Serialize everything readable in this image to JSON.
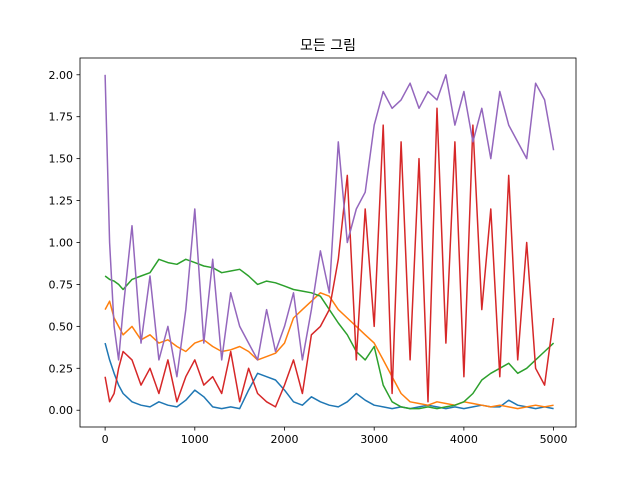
{
  "chart_data": {
    "type": "line",
    "title": "모든 그림",
    "xlabel": "",
    "ylabel": "",
    "xlim": [
      -280,
      5250
    ],
    "ylim": [
      -0.1,
      2.1
    ],
    "grid": false,
    "legend": "none",
    "xticks": [
      0,
      1000,
      2000,
      3000,
      4000,
      5000
    ],
    "xtick_labels": [
      "0",
      "1000",
      "2000",
      "3000",
      "4000",
      "5000"
    ],
    "yticks": [
      0.0,
      0.25,
      0.5,
      0.75,
      1.0,
      1.25,
      1.5,
      1.75,
      2.0
    ],
    "ytick_labels": [
      "0.00",
      "0.25",
      "0.50",
      "0.75",
      "1.00",
      "1.25",
      "1.50",
      "1.75",
      "2.00"
    ],
    "series": [
      {
        "color": "#1f77b4",
        "x": [
          0,
          50,
          100,
          150,
          200,
          300,
          400,
          500,
          600,
          700,
          800,
          900,
          1000,
          1100,
          1200,
          1300,
          1400,
          1500,
          1600,
          1700,
          1800,
          1900,
          2000,
          2100,
          2200,
          2300,
          2400,
          2500,
          2600,
          2700,
          2800,
          2900,
          3000,
          3100,
          3200,
          3300,
          3400,
          3500,
          3600,
          3700,
          3800,
          3900,
          4000,
          4100,
          4200,
          4300,
          4400,
          4500,
          4600,
          4700,
          4800,
          4900,
          5000
        ],
        "y": [
          0.4,
          0.3,
          0.22,
          0.15,
          0.1,
          0.05,
          0.03,
          0.02,
          0.05,
          0.03,
          0.02,
          0.06,
          0.12,
          0.08,
          0.02,
          0.01,
          0.02,
          0.01,
          0.12,
          0.22,
          0.2,
          0.18,
          0.12,
          0.05,
          0.03,
          0.08,
          0.05,
          0.03,
          0.02,
          0.05,
          0.1,
          0.06,
          0.03,
          0.02,
          0.01,
          0.02,
          0.01,
          0.02,
          0.03,
          0.02,
          0.01,
          0.02,
          0.01,
          0.02,
          0.03,
          0.02,
          0.02,
          0.06,
          0.03,
          0.02,
          0.01,
          0.02,
          0.01
        ]
      },
      {
        "color": "#ff7f0e",
        "x": [
          0,
          50,
          100,
          150,
          200,
          300,
          400,
          500,
          600,
          700,
          800,
          900,
          1000,
          1100,
          1200,
          1300,
          1400,
          1500,
          1600,
          1700,
          1800,
          1900,
          2000,
          2100,
          2200,
          2300,
          2400,
          2500,
          2600,
          2700,
          2800,
          2900,
          3000,
          3100,
          3200,
          3300,
          3400,
          3500,
          3600,
          3700,
          3800,
          3900,
          4000,
          4100,
          4200,
          4300,
          4400,
          4500,
          4600,
          4700,
          4800,
          4900,
          5000
        ],
        "y": [
          0.6,
          0.65,
          0.55,
          0.5,
          0.45,
          0.5,
          0.42,
          0.45,
          0.4,
          0.42,
          0.38,
          0.35,
          0.4,
          0.42,
          0.38,
          0.35,
          0.36,
          0.38,
          0.35,
          0.3,
          0.32,
          0.34,
          0.4,
          0.55,
          0.6,
          0.65,
          0.7,
          0.68,
          0.6,
          0.55,
          0.5,
          0.45,
          0.4,
          0.3,
          0.2,
          0.1,
          0.05,
          0.04,
          0.03,
          0.05,
          0.04,
          0.03,
          0.05,
          0.04,
          0.03,
          0.02,
          0.03,
          0.02,
          0.01,
          0.02,
          0.03,
          0.02,
          0.03
        ]
      },
      {
        "color": "#2ca02c",
        "x": [
          0,
          50,
          100,
          150,
          200,
          300,
          400,
          500,
          600,
          700,
          800,
          900,
          1000,
          1100,
          1200,
          1300,
          1400,
          1500,
          1600,
          1700,
          1800,
          1900,
          2000,
          2100,
          2200,
          2300,
          2400,
          2500,
          2600,
          2700,
          2800,
          2900,
          3000,
          3100,
          3200,
          3300,
          3400,
          3500,
          3600,
          3700,
          3800,
          3900,
          4000,
          4100,
          4200,
          4300,
          4400,
          4500,
          4600,
          4700,
          4800,
          4900,
          5000
        ],
        "y": [
          0.8,
          0.78,
          0.77,
          0.75,
          0.72,
          0.78,
          0.8,
          0.82,
          0.9,
          0.88,
          0.87,
          0.9,
          0.88,
          0.86,
          0.85,
          0.82,
          0.83,
          0.84,
          0.8,
          0.75,
          0.77,
          0.76,
          0.74,
          0.72,
          0.71,
          0.7,
          0.68,
          0.6,
          0.52,
          0.45,
          0.35,
          0.3,
          0.38,
          0.15,
          0.05,
          0.02,
          0.01,
          0.01,
          0.02,
          0.01,
          0.02,
          0.03,
          0.05,
          0.1,
          0.18,
          0.22,
          0.25,
          0.28,
          0.22,
          0.25,
          0.3,
          0.35,
          0.4
        ]
      },
      {
        "color": "#d62728",
        "x": [
          0,
          50,
          100,
          150,
          200,
          300,
          400,
          500,
          600,
          700,
          800,
          900,
          1000,
          1100,
          1200,
          1300,
          1400,
          1500,
          1600,
          1700,
          1800,
          1900,
          2000,
          2100,
          2200,
          2300,
          2400,
          2500,
          2600,
          2700,
          2800,
          2900,
          3000,
          3100,
          3200,
          3300,
          3400,
          3500,
          3600,
          3700,
          3800,
          3900,
          4000,
          4100,
          4200,
          4300,
          4400,
          4500,
          4600,
          4700,
          4800,
          4900,
          5000
        ],
        "y": [
          0.2,
          0.05,
          0.1,
          0.25,
          0.35,
          0.3,
          0.15,
          0.25,
          0.1,
          0.3,
          0.05,
          0.2,
          0.3,
          0.15,
          0.2,
          0.1,
          0.35,
          0.05,
          0.25,
          0.1,
          0.05,
          0.02,
          0.15,
          0.3,
          0.1,
          0.45,
          0.5,
          0.6,
          0.9,
          1.4,
          0.3,
          1.2,
          0.5,
          1.7,
          0.1,
          1.6,
          0.3,
          1.5,
          0.05,
          1.8,
          0.4,
          1.6,
          0.2,
          1.7,
          0.6,
          1.2,
          0.2,
          1.4,
          0.3,
          1.0,
          0.25,
          0.15,
          0.55
        ]
      },
      {
        "color": "#9467bd",
        "x": [
          0,
          50,
          100,
          150,
          200,
          300,
          400,
          500,
          600,
          700,
          800,
          900,
          1000,
          1100,
          1200,
          1300,
          1400,
          1500,
          1600,
          1700,
          1800,
          1900,
          2000,
          2100,
          2200,
          2300,
          2400,
          2500,
          2600,
          2700,
          2800,
          2900,
          3000,
          3100,
          3200,
          3300,
          3400,
          3500,
          3600,
          3700,
          3800,
          3900,
          4000,
          4100,
          4200,
          4300,
          4400,
          4500,
          4600,
          4700,
          4800,
          4900,
          5000
        ],
        "y": [
          2.0,
          1.0,
          0.5,
          0.3,
          0.6,
          1.1,
          0.4,
          0.8,
          0.3,
          0.5,
          0.2,
          0.6,
          1.2,
          0.4,
          0.9,
          0.3,
          0.7,
          0.5,
          0.4,
          0.3,
          0.6,
          0.35,
          0.5,
          0.7,
          0.3,
          0.6,
          0.95,
          0.7,
          1.6,
          1.0,
          1.2,
          1.3,
          1.7,
          1.9,
          1.8,
          1.85,
          1.95,
          1.8,
          1.9,
          1.85,
          2.0,
          1.7,
          1.9,
          1.6,
          1.8,
          1.5,
          1.9,
          1.7,
          1.6,
          1.5,
          1.95,
          1.85,
          1.55
        ]
      }
    ]
  }
}
